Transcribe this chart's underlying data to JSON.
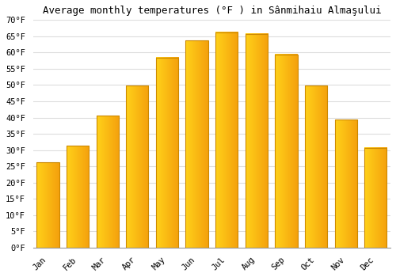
{
  "title": "Average monthly temperatures (°F ) in Sânmihaiu Almaşului",
  "months": [
    "Jan",
    "Feb",
    "Mar",
    "Apr",
    "May",
    "Jun",
    "Jul",
    "Aug",
    "Sep",
    "Oct",
    "Nov",
    "Dec"
  ],
  "values": [
    26.2,
    31.3,
    40.6,
    49.8,
    58.5,
    63.7,
    66.2,
    65.7,
    59.4,
    49.8,
    39.4,
    30.7
  ],
  "bar_color_left": "#FFD000",
  "bar_color_right": "#F5A000",
  "bar_edge_color": "#CC8800",
  "ylim": [
    0,
    70
  ],
  "yticks": [
    0,
    5,
    10,
    15,
    20,
    25,
    30,
    35,
    40,
    45,
    50,
    55,
    60,
    65,
    70
  ],
  "background_color": "#FFFFFF",
  "grid_color": "#DDDDDD",
  "title_fontsize": 9,
  "tick_fontsize": 7.5,
  "font_family": "monospace"
}
